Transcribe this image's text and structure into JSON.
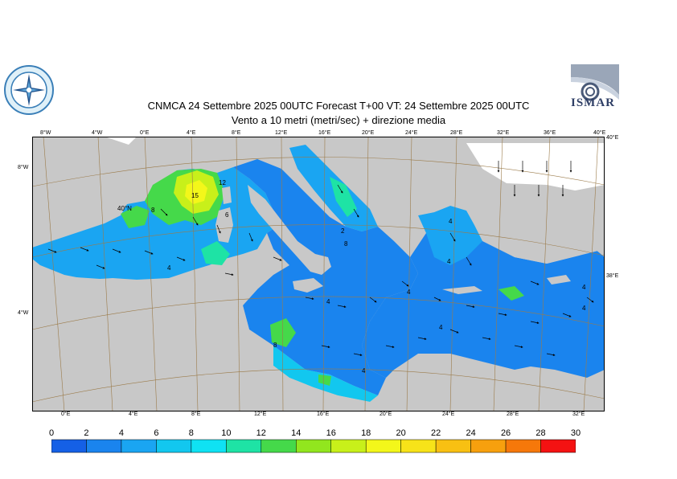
{
  "header": {
    "title_line1": "CNMCA 24 Settembre 2025 00UTC Forecast T+00 VT: 24 Settembre 2025 00UTC",
    "title_line2": "Vento a 10 metri (metri/sec) + direzione media"
  },
  "logos": {
    "left_icon": "compass-rose-seal-icon",
    "right_text": "ISMAR"
  },
  "map": {
    "land_color": "#c8c8c8",
    "grid_color": "#9b7b4a",
    "top_ticks": [
      "8°W",
      "4°W",
      "0°E",
      "4°E",
      "8°E",
      "12°E",
      "16°E",
      "20°E",
      "24°E",
      "28°E",
      "32°E",
      "36°E",
      "40°E"
    ],
    "bottom_ticks": [
      "0°E",
      "4°E",
      "8°E",
      "12°E",
      "16°E",
      "20°E",
      "24°E",
      "28°E",
      "32°E"
    ],
    "left_ticks": [
      "8°W",
      "4°W"
    ],
    "right_ticks": [
      "40°E",
      "38°E"
    ],
    "inner_label": "40°N",
    "value_labels": [
      "15",
      "12",
      "8",
      "6",
      "4",
      "4",
      "4",
      "8",
      "4",
      "4",
      "4",
      "4",
      "4",
      "4",
      "8",
      "2"
    ]
  },
  "legend": {
    "values": [
      "0",
      "2",
      "4",
      "6",
      "8",
      "10",
      "12",
      "14",
      "16",
      "18",
      "20",
      "22",
      "24",
      "26",
      "28",
      "30"
    ],
    "colors": [
      "#1560e6",
      "#1a84ee",
      "#1aa5f2",
      "#12c7ef",
      "#0fe2f3",
      "#1ee3a5",
      "#45d94a",
      "#92e61e",
      "#c8f01a",
      "#f3f71a",
      "#f7e319",
      "#f8c012",
      "#f7a00e",
      "#f6780a",
      "#f41212",
      "#f01e9a"
    ]
  }
}
